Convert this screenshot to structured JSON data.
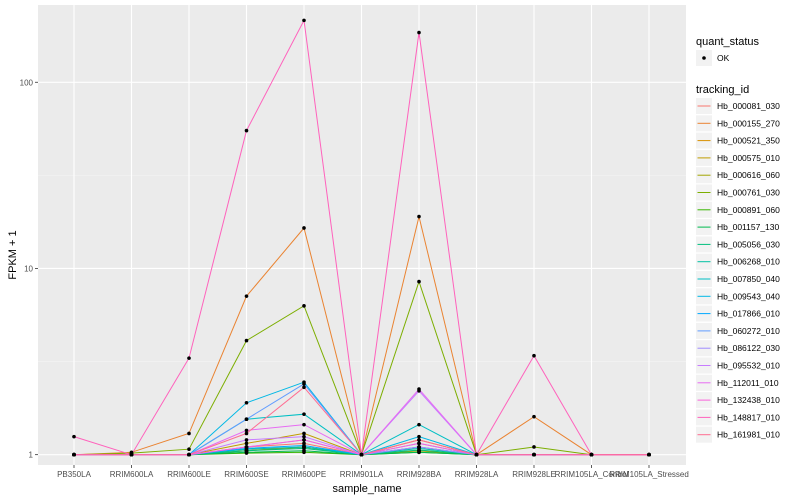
{
  "chart_data": {
    "type": "line",
    "xlabel": "sample_name",
    "ylabel": "FPKM + 1",
    "y_scale": "log10",
    "ylim": [
      0.88,
      260
    ],
    "y_ticks": [
      1,
      10,
      100
    ],
    "y_tick_labels": [
      "1",
      "10",
      "100"
    ],
    "categories": [
      "PB350LA",
      "RRIM600LA",
      "RRIM600LE",
      "RRIM600SE",
      "RRIM600PE",
      "RRIM901LA",
      "RRIM928BA",
      "RRIM928LA",
      "RRIM928LE",
      "RRIM105LA_Control",
      "RRIM105LA_Stressed"
    ],
    "grid": true,
    "legend_position": "right",
    "quant_status_legend": {
      "title": "quant_status",
      "label": "OK"
    },
    "tracking_legend_title": "tracking_id",
    "series": [
      {
        "name": "Hb_000081_030",
        "color": "#F8766D",
        "values": [
          1.0,
          1.0,
          1.0,
          1.1,
          1.15,
          1.0,
          1.1,
          1.0,
          1.0,
          1.0,
          1.0
        ]
      },
      {
        "name": "Hb_000155_270",
        "color": "#EA8331",
        "values": [
          1.0,
          1.03,
          1.3,
          7.1,
          16.5,
          1.0,
          19.0,
          1.0,
          1.6,
          1.0,
          1.0
        ]
      },
      {
        "name": "Hb_000521_350",
        "color": "#D89000",
        "values": [
          1.0,
          1.0,
          1.0,
          1.05,
          1.1,
          1.0,
          1.05,
          1.0,
          1.0,
          1.0,
          1.0
        ]
      },
      {
        "name": "Hb_000575_010",
        "color": "#C09B00",
        "values": [
          1.0,
          1.0,
          1.0,
          1.15,
          1.3,
          1.0,
          1.2,
          1.0,
          1.0,
          1.0,
          1.0
        ]
      },
      {
        "name": "Hb_000616_060",
        "color": "#A3A500",
        "values": [
          1.0,
          1.0,
          1.0,
          1.05,
          1.1,
          1.0,
          1.05,
          1.0,
          1.0,
          1.0,
          1.0
        ]
      },
      {
        "name": "Hb_000761_030",
        "color": "#7CAE00",
        "values": [
          1.0,
          1.02,
          1.07,
          4.1,
          6.3,
          1.0,
          8.5,
          1.0,
          1.1,
          1.0,
          1.0
        ]
      },
      {
        "name": "Hb_000891_060",
        "color": "#39B600",
        "values": [
          1.0,
          1.0,
          1.0,
          1.02,
          1.03,
          1.0,
          1.03,
          1.0,
          1.0,
          1.0,
          1.0
        ]
      },
      {
        "name": "Hb_001157_130",
        "color": "#00BB4E",
        "values": [
          1.0,
          1.0,
          1.0,
          1.03,
          1.05,
          1.0,
          1.03,
          1.0,
          1.0,
          1.0,
          1.0
        ]
      },
      {
        "name": "Hb_005056_030",
        "color": "#00BF7D",
        "values": [
          1.0,
          1.0,
          1.0,
          1.05,
          1.08,
          1.0,
          1.06,
          1.0,
          1.0,
          1.0,
          1.0
        ]
      },
      {
        "name": "Hb_006268_010",
        "color": "#00C1A3",
        "values": [
          1.0,
          1.0,
          1.0,
          1.07,
          1.1,
          1.0,
          1.08,
          1.0,
          1.0,
          1.0,
          1.0
        ]
      },
      {
        "name": "Hb_007850_040",
        "color": "#00BFC4",
        "values": [
          1.0,
          1.0,
          1.0,
          1.55,
          1.65,
          1.0,
          1.45,
          1.0,
          1.0,
          1.0,
          1.0
        ]
      },
      {
        "name": "Hb_009543_040",
        "color": "#00B8E5",
        "values": [
          1.0,
          1.0,
          1.0,
          1.9,
          2.45,
          1.0,
          1.25,
          1.0,
          1.0,
          1.0,
          1.0
        ]
      },
      {
        "name": "Hb_017866_010",
        "color": "#00A9FF",
        "values": [
          1.0,
          1.0,
          1.0,
          1.08,
          1.12,
          1.0,
          1.1,
          1.0,
          1.0,
          1.0,
          1.0
        ]
      },
      {
        "name": "Hb_060272_010",
        "color": "#619CFF",
        "values": [
          1.0,
          1.0,
          1.0,
          1.55,
          2.4,
          1.0,
          1.15,
          1.0,
          1.0,
          1.0,
          1.0
        ]
      },
      {
        "name": "Hb_086122_030",
        "color": "#9F8CFF",
        "values": [
          1.0,
          1.0,
          1.0,
          1.1,
          1.2,
          1.0,
          1.1,
          1.0,
          1.0,
          1.0,
          1.0
        ]
      },
      {
        "name": "Hb_095532_010",
        "color": "#C77CFF",
        "values": [
          1.0,
          1.0,
          1.0,
          1.2,
          1.25,
          1.0,
          2.2,
          1.0,
          1.0,
          1.0,
          1.0
        ]
      },
      {
        "name": "Hb_112011_010",
        "color": "#E76BF3",
        "values": [
          1.0,
          1.0,
          1.0,
          1.35,
          1.45,
          1.0,
          2.25,
          1.0,
          1.0,
          1.0,
          1.0
        ]
      },
      {
        "name": "Hb_132438_010",
        "color": "#FA62DB",
        "values": [
          1.0,
          1.0,
          1.0,
          1.1,
          1.2,
          1.0,
          1.15,
          1.0,
          1.0,
          1.0,
          1.0
        ]
      },
      {
        "name": "Hb_148817_010",
        "color": "#FF62BC",
        "values": [
          1.25,
          1.0,
          3.3,
          55.0,
          215.0,
          1.0,
          185.0,
          1.0,
          3.4,
          1.0,
          1.0
        ]
      },
      {
        "name": "Hb_161981_010",
        "color": "#FF6C91",
        "values": [
          1.0,
          1.0,
          1.0,
          1.3,
          2.3,
          1.0,
          1.2,
          1.0,
          1.0,
          1.0,
          1.0
        ]
      }
    ]
  }
}
